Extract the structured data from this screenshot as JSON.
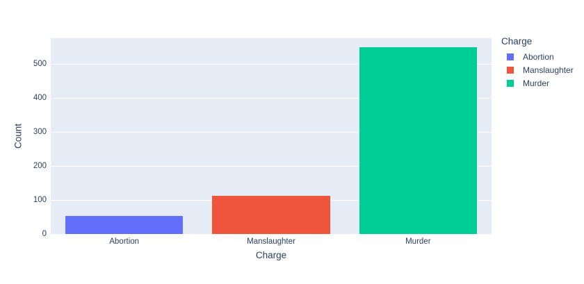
{
  "chart_data": {
    "type": "bar",
    "categories": [
      "Abortion",
      "Manslaughter",
      "Murder"
    ],
    "values": [
      54,
      113,
      550
    ],
    "title": "",
    "xlabel": "Charge",
    "ylabel": "Count",
    "ylim": [
      0,
      577
    ],
    "yticks": [
      0,
      100,
      200,
      300,
      400,
      500
    ],
    "grid": true,
    "bar_colors": [
      "#636EFA",
      "#EF553B",
      "#00CC96"
    ],
    "legend": {
      "title": "Charge",
      "position": "right",
      "entries": [
        {
          "label": "Abortion",
          "color": "#636EFA"
        },
        {
          "label": "Manslaughter",
          "color": "#EF553B"
        },
        {
          "label": "Murder",
          "color": "#00CC96"
        }
      ]
    },
    "colors": {
      "plot_background": "#E5ECF6",
      "grid": "#FFFFFF",
      "text": "#2A3F5F",
      "paper": "#FFFFFF"
    }
  }
}
